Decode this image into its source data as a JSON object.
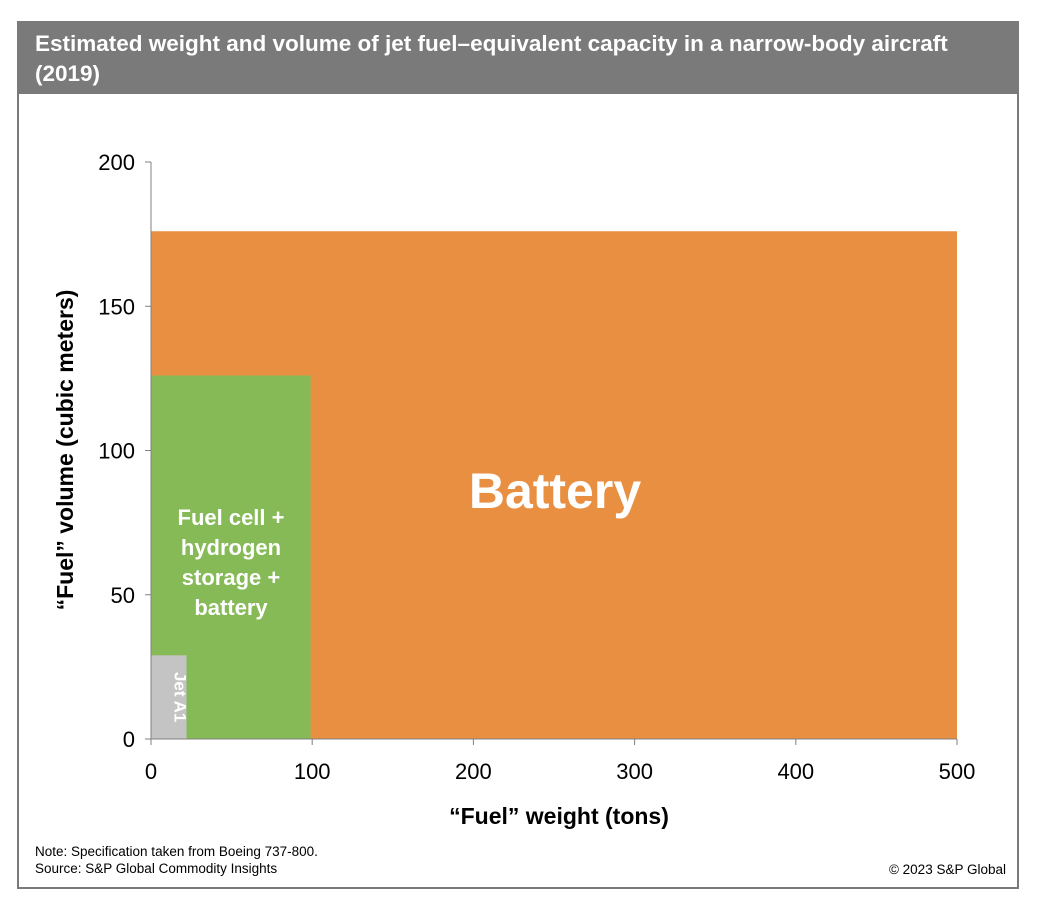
{
  "chart_data": {
    "type": "area",
    "title": "Estimated weight and volume of jet fuel–equivalent capacity in a narrow-body aircraft (2019)",
    "xlabel": "“Fuel” weight (tons)",
    "ylabel": "“Fuel” volume (cubic meters)",
    "xlim": [
      0,
      500
    ],
    "ylim": [
      0,
      200
    ],
    "xticks": [
      0,
      100,
      200,
      300,
      400,
      500
    ],
    "yticks": [
      0,
      50,
      100,
      150,
      200
    ],
    "series": [
      {
        "name": "Battery",
        "weight": 500,
        "volume": 176,
        "color": "#e98f42",
        "label_lines": [
          "Battery"
        ]
      },
      {
        "name": "Fuel cell + hydrogen storage + battery",
        "weight": 99,
        "volume": 126,
        "color": "#86ba57",
        "label_lines": [
          "Fuel cell +",
          "hydrogen",
          "storage +",
          "battery"
        ]
      },
      {
        "name": "Jet A1",
        "weight": 22,
        "volume": 29,
        "color": "#c4c4c4",
        "label_lines": [
          "Jet A1"
        ]
      }
    ]
  },
  "footer": {
    "note": "Note: Specification taken from Boeing 737-800.",
    "source": "Source: S&P Global Commodity Insights",
    "copyright": "© 2023 S&P Global"
  }
}
